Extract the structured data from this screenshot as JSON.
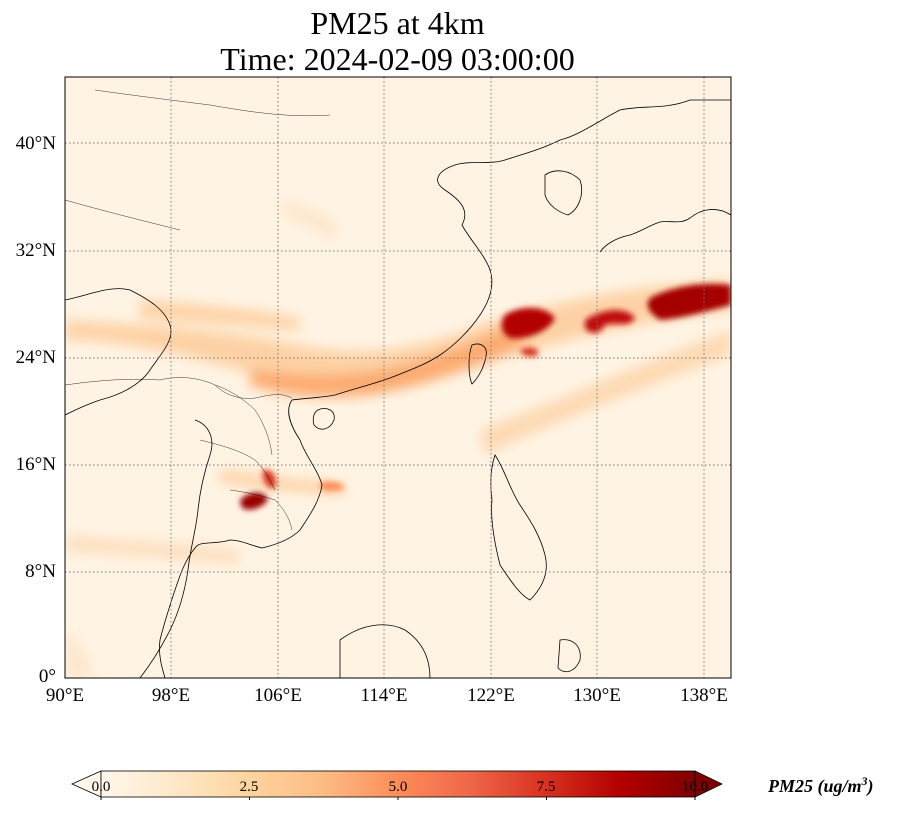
{
  "title_line1": "PM25 at 4km",
  "title_line2": "Time: 2024-02-09 03:00:00",
  "axes": {
    "lat_ticks": [
      "0°",
      "8°N",
      "16°N",
      "24°N",
      "32°N",
      "40°N"
    ],
    "lon_ticks": [
      "90°E",
      "98°E",
      "106°E",
      "114°E",
      "122°E",
      "130°E",
      "138°E"
    ],
    "lat_range": [
      0,
      45
    ],
    "lon_range": [
      90,
      140
    ],
    "gridlines": "dotted"
  },
  "colorbar": {
    "ticks": [
      "0.0",
      "2.5",
      "5.0",
      "7.5",
      "10.0"
    ],
    "label": "PM25 (ug/m",
    "label_sup": "3",
    "label_end": ")",
    "range": [
      0,
      10
    ],
    "extend": "both",
    "colormap": "OrRd",
    "colors": [
      "#fff7ec",
      "#fee8c8",
      "#fdd49e",
      "#fdbb84",
      "#fc8d59",
      "#ef6548",
      "#d7301f",
      "#b30000",
      "#7f0000"
    ]
  }
}
